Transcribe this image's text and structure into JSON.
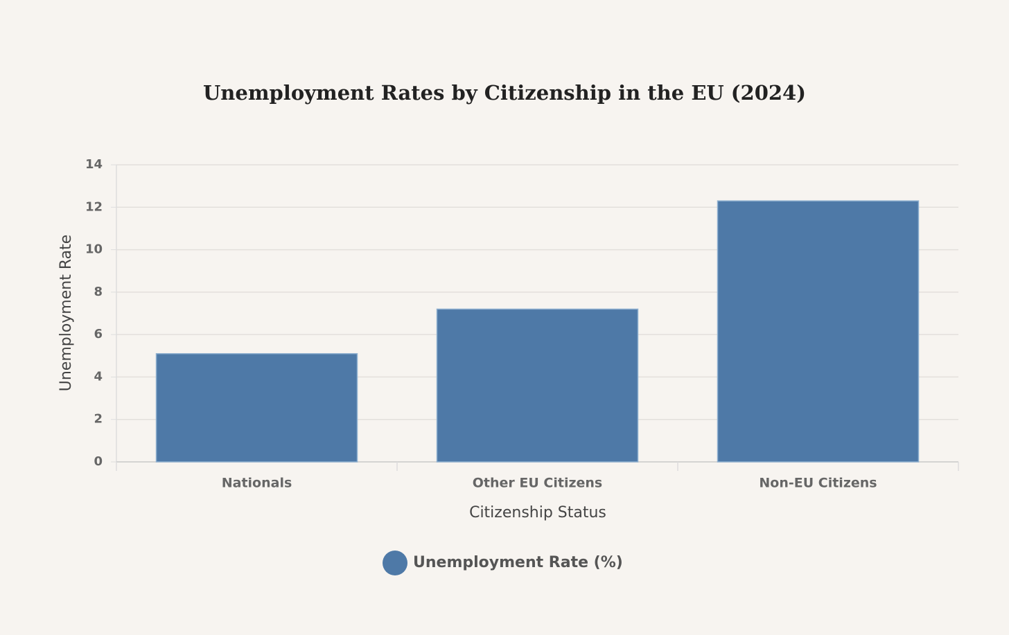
{
  "chart_data": {
    "type": "bar",
    "title": "Unemployment Rates by Citizenship in the EU (2024)",
    "x_label": "Citizenship Status",
    "y_label": "Unemployment Rate",
    "categories": [
      "Nationals",
      "Other EU Citizens",
      "Non-EU Citizens"
    ],
    "series": [
      {
        "name": "Unemployment Rate (%)",
        "color": "#4e79a7",
        "values": [
          5.1,
          7.2,
          12.3
        ]
      }
    ],
    "ylim": [
      0,
      14
    ],
    "yticks": [
      0,
      2,
      4,
      6,
      8,
      10,
      12,
      14
    ],
    "grid": true
  }
}
